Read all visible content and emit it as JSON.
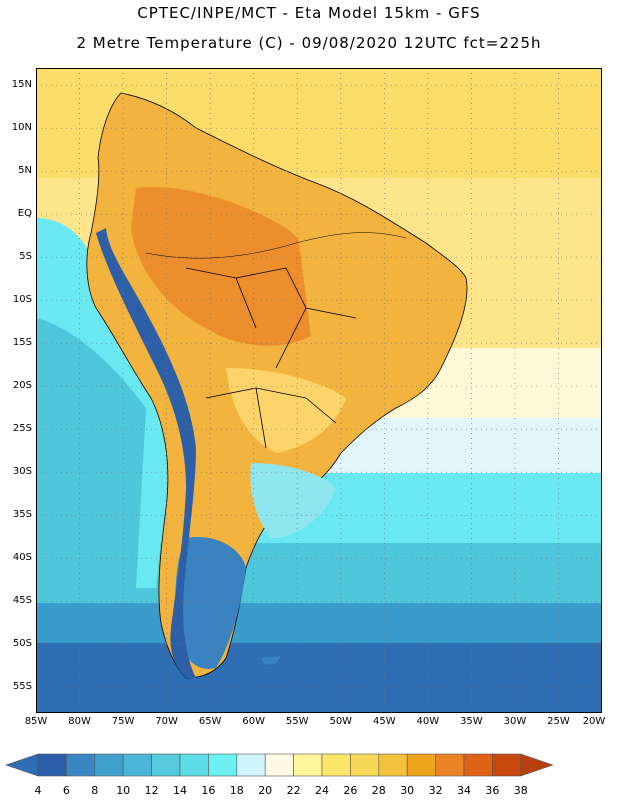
{
  "title_line1": "CPTEC/INPE/MCT -  Eta Model 15km - GFS",
  "title_line2": "2 Metre Temperature (C) - 09/08/2020 12UTC fct=225h",
  "map": {
    "lon_range": [
      -85,
      -20
    ],
    "lat_range": [
      -58,
      17
    ],
    "lat_labels": [
      "15N",
      "10N",
      "5N",
      "EQ",
      "5S",
      "10S",
      "15S",
      "20S",
      "25S",
      "30S",
      "35S",
      "40S",
      "45S",
      "50S",
      "55S"
    ],
    "lon_labels": [
      "85W",
      "80W",
      "75W",
      "70W",
      "65W",
      "60W",
      "55W",
      "50W",
      "45W",
      "40W",
      "35W",
      "30W",
      "25W",
      "20W"
    ]
  },
  "colorbar": {
    "labels": [
      "4",
      "6",
      "8",
      "10",
      "12",
      "14",
      "16",
      "18",
      "20",
      "22",
      "24",
      "26",
      "28",
      "30",
      "32",
      "34",
      "36",
      "38"
    ],
    "colors": [
      "#2f6db4",
      "#2b5ea8",
      "#3a86c2",
      "#3fa0cc",
      "#4cb6d8",
      "#56cade",
      "#5fdde6",
      "#6cf0f4",
      "#cff4fb",
      "#fffae3",
      "#fff59a",
      "#fbe66a",
      "#f7d757",
      "#f3c23d",
      "#efa51b",
      "#e98526",
      "#de6317",
      "#c8470e",
      "#b8400e"
    ]
  },
  "colors": {
    "ocean_warm": "#fbde6a",
    "ocean_tropical": "#fee48a",
    "ocean_pale": "#fff9d8",
    "ocean_cool": "#e0f6fb",
    "ocean_cyan": "#6ae8f2",
    "ocean_mid": "#4ec7dc",
    "ocean_deep": "#3a9ccc",
    "ocean_cold": "#2e6eb2",
    "land_hot": "#ec8e2c",
    "land_warm": "#f3b33f",
    "land_mild": "#fcd469",
    "land_cool": "#8fe6f0",
    "land_cold": "#3a82c0",
    "andes": "#2d5fa6"
  }
}
